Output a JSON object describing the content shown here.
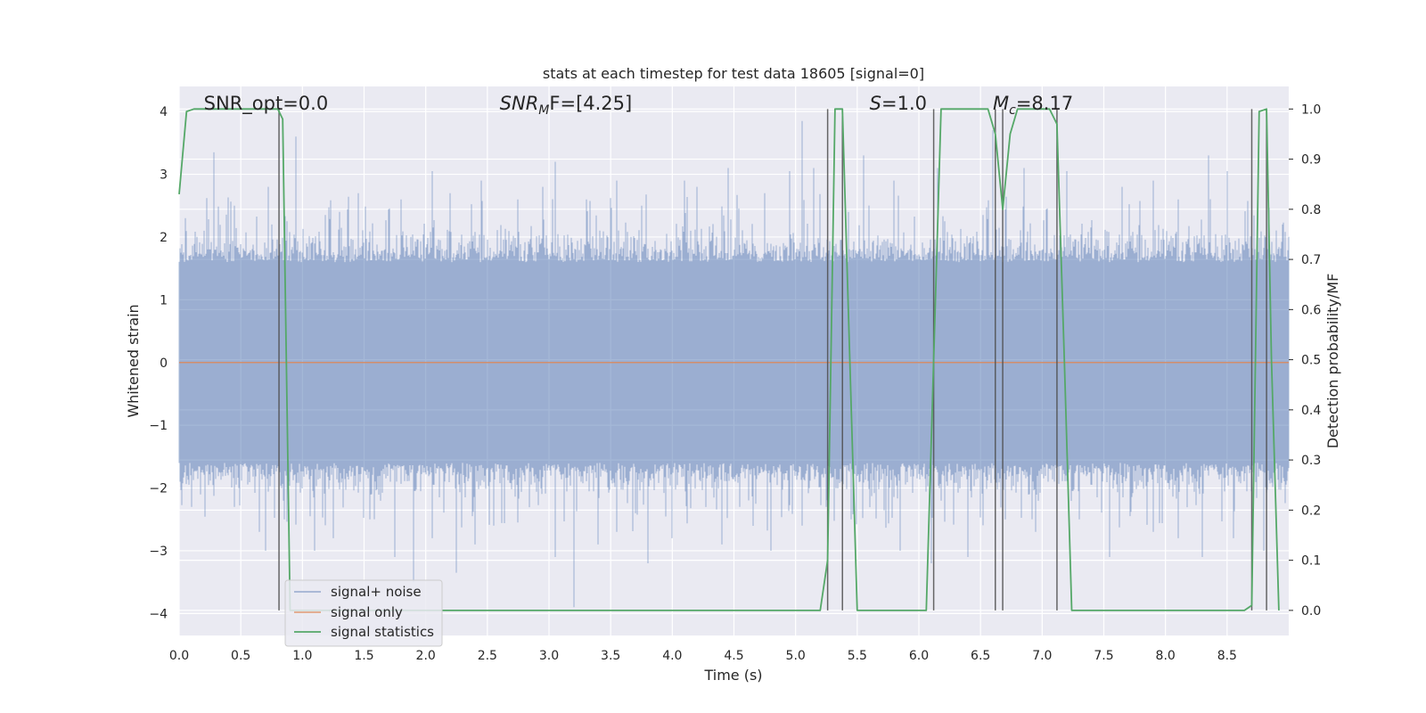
{
  "chart_data": {
    "type": "line",
    "title": "stats at each timestep for test data 18605 [signal=0]",
    "xlabel": "Time (s)",
    "ylabel": "Whitened strain",
    "y2label": "Detection probability/MF",
    "xlim": [
      0.0,
      9.0
    ],
    "ylim": [
      -4.35,
      4.4
    ],
    "y2lim": [
      -0.05,
      1.045
    ],
    "xticks": [
      0.0,
      0.5,
      1.0,
      1.5,
      2.0,
      2.5,
      3.0,
      3.5,
      4.0,
      4.5,
      5.0,
      5.5,
      6.0,
      6.5,
      7.0,
      7.5,
      8.0,
      8.5
    ],
    "xtick_labels": [
      "0.0",
      "0.5",
      "1.0",
      "1.5",
      "2.0",
      "2.5",
      "3.0",
      "3.5",
      "4.0",
      "4.5",
      "5.0",
      "5.5",
      "6.0",
      "6.5",
      "7.0",
      "7.5",
      "8.0",
      "8.5"
    ],
    "yticks": [
      -4,
      -3,
      -2,
      -1,
      0,
      1,
      2,
      3,
      4
    ],
    "ytick_labels": [
      "−4",
      "−3",
      "−2",
      "−1",
      "0",
      "1",
      "2",
      "3",
      "4"
    ],
    "y2ticks": [
      0.0,
      0.1,
      0.2,
      0.3,
      0.4,
      0.5,
      0.6,
      0.7,
      0.8,
      0.9,
      1.0
    ],
    "y2tick_labels": [
      "0.0",
      "0.1",
      "0.2",
      "0.3",
      "0.4",
      "0.5",
      "0.6",
      "0.7",
      "0.8",
      "0.9",
      "1.0"
    ],
    "grid": true,
    "legend_position": "bottom-left",
    "annotations": [
      {
        "id": "snr-opt",
        "x": 0.2,
        "text": "SNR_opt=0.0",
        "math": false
      },
      {
        "id": "snr-mf",
        "x": 2.6,
        "text_main": "SNR",
        "text_sub": "M",
        "text_tail": "F=[4.25]",
        "math": true
      },
      {
        "id": "s-stat",
        "x": 5.6,
        "text_main": "S",
        "text_sub": "",
        "text_tail": "=1.0",
        "math": true
      },
      {
        "id": "mc",
        "x": 6.6,
        "text_main": "M",
        "text_sub": "c",
        "text_tail": "=8.17",
        "math": true
      }
    ],
    "series": [
      {
        "name": "signal+ noise",
        "color": "#4c72b0",
        "axis": "left",
        "kind": "noise",
        "x_range": [
          0.0,
          9.0
        ],
        "envelope_typical": 1.6,
        "spikes": [
          [
            0.05,
            2.3
          ],
          [
            0.2,
            2.1
          ],
          [
            0.28,
            3.35
          ],
          [
            0.45,
            2.5
          ],
          [
            0.72,
            2.8
          ],
          [
            0.75,
            2.2
          ],
          [
            0.95,
            3.6
          ],
          [
            1.3,
            2.4
          ],
          [
            1.45,
            2.7
          ],
          [
            1.8,
            2.6
          ],
          [
            2.05,
            3.05
          ],
          [
            2.2,
            2.7
          ],
          [
            2.45,
            2.9
          ],
          [
            2.75,
            2.6
          ],
          [
            2.95,
            2.8
          ],
          [
            3.05,
            3.2
          ],
          [
            3.3,
            2.6
          ],
          [
            3.55,
            2.9
          ],
          [
            3.75,
            2.5
          ],
          [
            4.1,
            2.9
          ],
          [
            4.2,
            2.8
          ],
          [
            4.45,
            3.1
          ],
          [
            4.75,
            2.7
          ],
          [
            4.95,
            3.05
          ],
          [
            5.05,
            3.85
          ],
          [
            5.15,
            3.1
          ],
          [
            5.55,
            3.3
          ],
          [
            5.8,
            2.9
          ],
          [
            6.15,
            3.1
          ],
          [
            6.6,
            3.7
          ],
          [
            6.85,
            3.1
          ],
          [
            7.2,
            3.05
          ],
          [
            7.65,
            2.8
          ],
          [
            7.9,
            2.9
          ],
          [
            8.1,
            2.6
          ],
          [
            8.35,
            3.3
          ],
          [
            8.5,
            3.05
          ],
          [
            8.75,
            2.5
          ],
          [
            8.95,
            2.2
          ],
          [
            0.1,
            -2.3
          ],
          [
            0.45,
            -2.3
          ],
          [
            0.65,
            -2.7
          ],
          [
            0.7,
            -3.0
          ],
          [
            0.85,
            -2.5
          ],
          [
            1.1,
            -3.0
          ],
          [
            1.25,
            -2.8
          ],
          [
            1.55,
            -2.5
          ],
          [
            1.75,
            -3.1
          ],
          [
            1.9,
            -3.5
          ],
          [
            2.05,
            -2.8
          ],
          [
            2.25,
            -3.35
          ],
          [
            2.4,
            -2.9
          ],
          [
            2.55,
            -2.6
          ],
          [
            2.75,
            -2.55
          ],
          [
            3.05,
            -3.1
          ],
          [
            3.2,
            -3.9
          ],
          [
            3.4,
            -2.9
          ],
          [
            3.55,
            -2.7
          ],
          [
            3.8,
            -3.2
          ],
          [
            4.0,
            -2.8
          ],
          [
            4.15,
            -2.3
          ],
          [
            4.4,
            -2.9
          ],
          [
            4.55,
            -2.3
          ],
          [
            4.8,
            -3.0
          ],
          [
            5.05,
            -2.6
          ],
          [
            5.45,
            -2.5
          ],
          [
            5.85,
            -3.0
          ],
          [
            6.1,
            -3.2
          ],
          [
            6.4,
            -3.1
          ],
          [
            6.7,
            -2.5
          ],
          [
            6.95,
            -2.7
          ],
          [
            7.3,
            -2.5
          ],
          [
            7.55,
            -3.1
          ],
          [
            7.9,
            -2.7
          ],
          [
            8.1,
            -2.8
          ],
          [
            8.3,
            -3.1
          ],
          [
            8.55,
            -2.8
          ],
          [
            8.8,
            -3.0
          ]
        ]
      },
      {
        "name": "signal only",
        "color": "#dd8452",
        "axis": "left",
        "kind": "flat",
        "x": [
          0.0,
          9.0
        ],
        "y": [
          0.0,
          0.0
        ]
      },
      {
        "name": "signal statistics",
        "color": "#55a868",
        "axis": "right",
        "kind": "line",
        "x": [
          0.0,
          0.06,
          0.12,
          0.5,
          0.8,
          0.84,
          0.9,
          5.2,
          5.26,
          5.32,
          5.38,
          5.44,
          5.5,
          6.06,
          6.12,
          6.18,
          6.56,
          6.62,
          6.68,
          6.74,
          6.8,
          7.06,
          7.12,
          7.18,
          7.24,
          8.64,
          8.7,
          8.76,
          8.82,
          8.86,
          8.92
        ],
        "y": [
          0.83,
          0.995,
          1.0,
          1.0,
          1.0,
          0.98,
          0.0,
          0.0,
          0.1,
          1.0,
          1.0,
          0.5,
          0.0,
          0.0,
          0.5,
          1.0,
          1.0,
          0.95,
          0.8,
          0.95,
          1.0,
          1.0,
          0.97,
          0.5,
          0.0,
          0.0,
          0.01,
          0.995,
          1.0,
          0.5,
          0.0
        ]
      }
    ],
    "vertical_lines": {
      "color": "#4d4d4d",
      "x": [
        0.81,
        5.26,
        5.38,
        6.12,
        6.62,
        6.68,
        7.12,
        8.7,
        8.82
      ],
      "y_range": [
        0.0,
        1.0
      ]
    }
  }
}
